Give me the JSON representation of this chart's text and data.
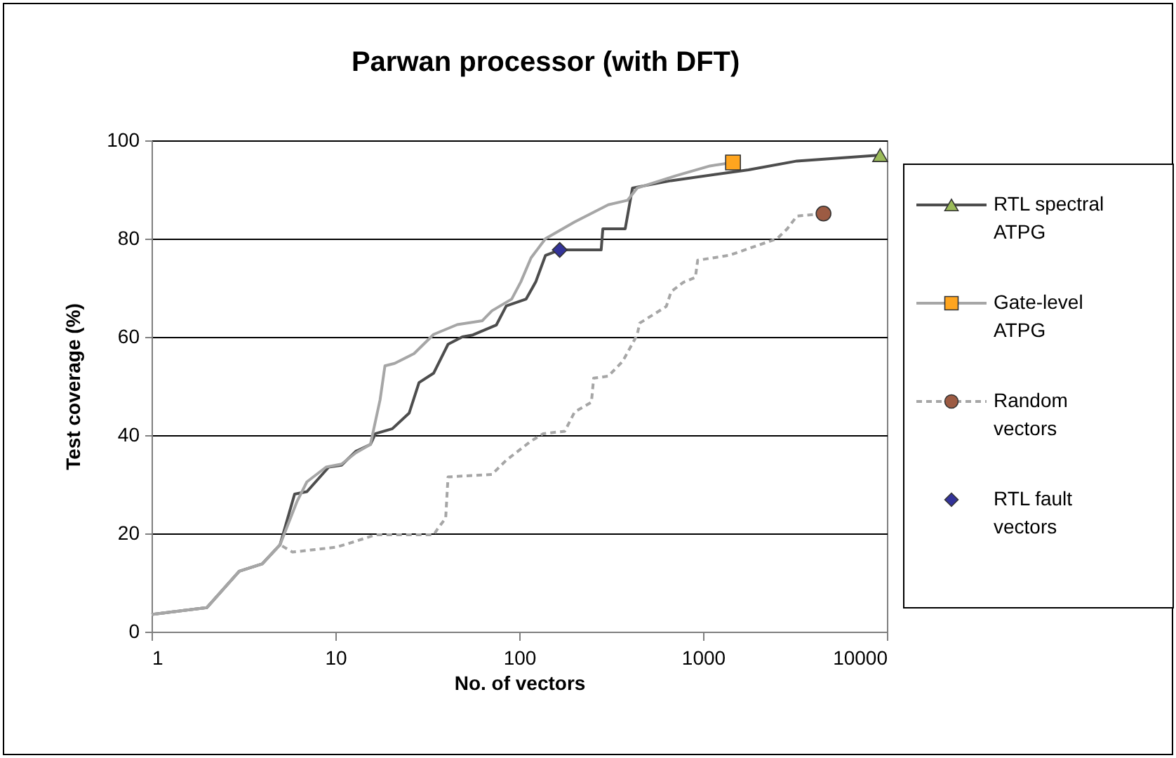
{
  "chart_data": {
    "type": "line",
    "title": "Parwan processor (with DFT)",
    "xlabel": "No. of vectors",
    "ylabel": "Test coverage (%)",
    "xlim": [
      1,
      10000
    ],
    "xticks": [
      1,
      10,
      100,
      1000,
      10000
    ],
    "ylim": [
      0,
      100
    ],
    "yticks": [
      0,
      20,
      40,
      60,
      80,
      100
    ],
    "log": "x",
    "grid": "y",
    "legend": "right",
    "series": [
      {
        "name": "RTL spectral ATPG",
        "color": "#4d4d4d",
        "marker": "none",
        "line_style": "solid",
        "x": [
          1,
          2,
          3,
          4,
          5,
          6,
          7,
          9.2,
          10.8,
          12.9,
          15.5,
          16.5,
          20.4,
          25.2,
          28.5,
          34.2,
          41,
          49,
          56,
          75,
          85,
          109,
          123,
          139,
          166,
          279,
          285,
          377,
          413,
          670,
          1766,
          3240,
          9190
        ],
        "values": [
          3.5,
          4.9,
          12.3,
          13.8,
          17.7,
          28,
          28.5,
          33.5,
          33.9,
          36.7,
          38.1,
          40.3,
          41.3,
          44.5,
          50.7,
          52.6,
          58.5,
          60,
          60.4,
          62.4,
          66.3,
          67.7,
          71.2,
          76.6,
          77.7,
          77.7,
          82,
          82,
          90.3,
          91.8,
          94,
          95.8,
          97
        ]
      },
      {
        "type": "scatter",
        "color": "#9bbb59",
        "marker": "triangle",
        "x": [
          9190
        ],
        "values": [
          97
        ]
      },
      {
        "name": "Gate-level ATPG",
        "color": "#a6a6a6",
        "marker": "none",
        "line_style": "solid",
        "x": [
          1,
          2,
          3,
          4,
          5,
          6.2,
          7,
          8.9,
          10.8,
          12.9,
          15.5,
          17.5,
          18.6,
          21,
          26.8,
          34.2,
          46,
          63,
          71,
          91,
          102,
          116,
          139,
          200,
          305,
          388,
          438,
          712,
          1090,
          1455
        ],
        "values": [
          3.5,
          4.9,
          12.3,
          13.8,
          17.7,
          26.6,
          30.5,
          33.5,
          34.1,
          36.4,
          38.1,
          47.2,
          54.1,
          54.6,
          56.6,
          60.5,
          62.5,
          63.3,
          65.3,
          67.7,
          71.2,
          76.1,
          80,
          83.4,
          86.9,
          87.8,
          90.3,
          92.8,
          94.8,
          95.5
        ]
      },
      {
        "type": "scatter",
        "color": "#ffa51f",
        "marker": "square",
        "x": [
          1455
        ],
        "values": [
          95.5
        ]
      },
      {
        "name": "Random vectors",
        "color": "#a6a6a6",
        "marker": "none",
        "line_style": "dashed",
        "x": [
          1,
          2,
          3,
          4,
          5,
          5.85,
          10.1,
          12.9,
          16.5,
          34.2,
          36.4,
          39.8,
          41,
          71,
          85,
          116,
          135,
          177,
          200,
          247,
          254,
          305,
          365,
          438,
          452,
          631,
          670,
          780,
          908,
          935,
          1387,
          2120,
          2530,
          2870,
          3240,
          4520
        ],
        "values": [
          3.5,
          4.9,
          12.3,
          13.8,
          17.7,
          16.2,
          17.2,
          18.4,
          19.7,
          19.7,
          21.2,
          23.1,
          31.5,
          32,
          34.9,
          38.8,
          40.3,
          40.8,
          44.7,
          46.7,
          51.6,
          52,
          55,
          60.4,
          62.8,
          66.2,
          69.2,
          71.1,
          72.1,
          75.6,
          76.6,
          79,
          80,
          82,
          84.6,
          85.1
        ]
      },
      {
        "type": "scatter",
        "color": "#9c5b43",
        "marker": "circle",
        "x": [
          4520
        ],
        "values": [
          85.1
        ]
      },
      {
        "name": "RTL fault vectors",
        "type": "scatter",
        "color": "#333399",
        "marker": "diamond",
        "x": [
          166
        ],
        "values": [
          77.7
        ]
      }
    ]
  }
}
